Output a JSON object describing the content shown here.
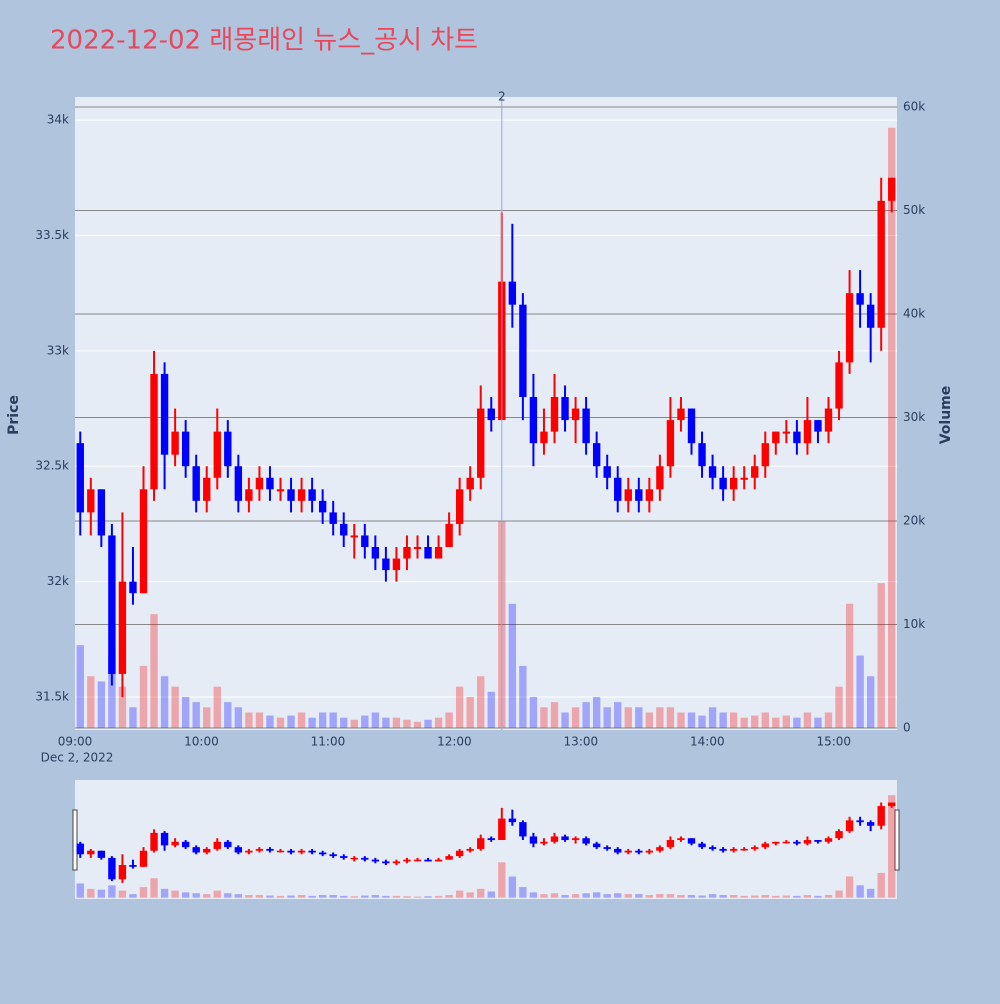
{
  "chart_data": {
    "type": "candlestick",
    "title": "2022-12-02 래몽래인 뉴스_공시 차트",
    "x_date_label": "Dec 2, 2022",
    "y_title": "Price",
    "y2_title": "Volume",
    "increasing_color": "#ff0000",
    "decreasing_color": "#0000ff",
    "xlim": [
      "09:00",
      "15:30"
    ],
    "xticks": [
      "09:00",
      "10:00",
      "11:00",
      "12:00",
      "13:00",
      "14:00",
      "15:00"
    ],
    "ylim": [
      31357,
      34100
    ],
    "yticks": [
      {
        "value": 31500,
        "label": "31.5k"
      },
      {
        "value": 32000,
        "label": "32k"
      },
      {
        "value": 32500,
        "label": "32.5k"
      },
      {
        "value": 33000,
        "label": "33k"
      },
      {
        "value": 33500,
        "label": "33.5k"
      },
      {
        "value": 34000,
        "label": "34k"
      }
    ],
    "y2lim": [
      -193,
      60966
    ],
    "y2ticks": [
      0,
      {
        "value": 10000,
        "label": "10k"
      },
      {
        "value": 20000,
        "label": "20k"
      },
      {
        "value": 30000,
        "label": "30k"
      },
      {
        "value": 40000,
        "label": "40k"
      },
      {
        "value": 50000,
        "label": "50k"
      },
      {
        "value": 60000,
        "label": "60k"
      }
    ],
    "annotation": {
      "x": "12:20",
      "text": "2"
    },
    "x": [
      "09:00",
      "09:05",
      "09:10",
      "09:15",
      "09:20",
      "09:25",
      "09:30",
      "09:35",
      "09:40",
      "09:45",
      "09:50",
      "09:55",
      "10:00",
      "10:05",
      "10:10",
      "10:15",
      "10:20",
      "10:25",
      "10:30",
      "10:35",
      "10:40",
      "10:45",
      "10:50",
      "10:55",
      "11:00",
      "11:05",
      "11:10",
      "11:15",
      "11:20",
      "11:25",
      "11:30",
      "11:35",
      "11:40",
      "11:45",
      "11:50",
      "11:55",
      "12:00",
      "12:05",
      "12:10",
      "12:15",
      "12:20",
      "12:25",
      "12:30",
      "12:35",
      "12:40",
      "12:45",
      "12:50",
      "12:55",
      "13:00",
      "13:05",
      "13:10",
      "13:15",
      "13:20",
      "13:25",
      "13:30",
      "13:35",
      "13:40",
      "13:45",
      "13:50",
      "13:55",
      "14:00",
      "14:05",
      "14:10",
      "14:15",
      "14:20",
      "14:25",
      "14:30",
      "14:35",
      "14:40",
      "14:45",
      "14:50",
      "14:55",
      "15:00",
      "15:05",
      "15:10",
      "15:15",
      "15:20",
      "15:25"
    ],
    "open": [
      32600,
      32300,
      32400,
      32200,
      31600,
      32000,
      31950,
      32400,
      32900,
      32550,
      32650,
      32500,
      32350,
      32450,
      32650,
      32500,
      32350,
      32400,
      32450,
      32400,
      32400,
      32350,
      32400,
      32350,
      32300,
      32250,
      32200,
      32200,
      32150,
      32100,
      32050,
      32100,
      32150,
      32150,
      32100,
      32150,
      32250,
      32400,
      32450,
      32750,
      32700,
      33300,
      33200,
      32800,
      32600,
      32650,
      32800,
      32700,
      32750,
      32600,
      32500,
      32450,
      32350,
      32400,
      32350,
      32400,
      32500,
      32700,
      32750,
      32600,
      32500,
      32450,
      32400,
      32450,
      32450,
      32500,
      32600,
      32650,
      32650,
      32600,
      32700,
      32650,
      32750,
      32950,
      33250,
      33200,
      33100,
      33650
    ],
    "high": [
      32650,
      32450,
      32400,
      32250,
      32300,
      32150,
      32500,
      33000,
      32950,
      32750,
      32700,
      32550,
      32500,
      32750,
      32700,
      32550,
      32450,
      32500,
      32500,
      32450,
      32450,
      32450,
      32450,
      32400,
      32350,
      32300,
      32250,
      32250,
      32200,
      32150,
      32150,
      32200,
      32200,
      32200,
      32200,
      32300,
      32450,
      32500,
      32850,
      32800,
      33600,
      33550,
      33250,
      32900,
      32750,
      32900,
      32850,
      32800,
      32800,
      32650,
      32550,
      32500,
      32450,
      32450,
      32450,
      32550,
      32800,
      32800,
      32750,
      32650,
      32550,
      32500,
      32500,
      32500,
      32550,
      32650,
      32650,
      32700,
      32700,
      32800,
      32700,
      32800,
      33000,
      33350,
      33350,
      33250,
      33750,
      33750
    ],
    "low": [
      32200,
      32200,
      32150,
      31550,
      31500,
      31900,
      31950,
      32350,
      32400,
      32500,
      32450,
      32300,
      32300,
      32400,
      32450,
      32300,
      32300,
      32350,
      32350,
      32350,
      32300,
      32300,
      32300,
      32250,
      32200,
      32150,
      32100,
      32100,
      32050,
      32000,
      32000,
      32050,
      32100,
      32100,
      32100,
      32150,
      32200,
      32350,
      32400,
      32650,
      32700,
      33100,
      32700,
      32500,
      32550,
      32600,
      32650,
      32600,
      32550,
      32450,
      32400,
      32300,
      32300,
      32300,
      32300,
      32350,
      32450,
      32650,
      32550,
      32450,
      32400,
      32350,
      32350,
      32400,
      32400,
      32450,
      32550,
      32600,
      32550,
      32550,
      32600,
      32600,
      32700,
      32900,
      33100,
      32950,
      33000,
      33600
    ],
    "close": [
      32300,
      32400,
      32200,
      31600,
      32000,
      31950,
      32400,
      32900,
      32550,
      32650,
      32500,
      32350,
      32450,
      32650,
      32500,
      32350,
      32400,
      32450,
      32400,
      32400,
      32350,
      32400,
      32350,
      32300,
      32250,
      32200,
      32200,
      32150,
      32100,
      32050,
      32100,
      32150,
      32150,
      32100,
      32150,
      32250,
      32400,
      32450,
      32750,
      32700,
      33300,
      33200,
      32800,
      32600,
      32650,
      32800,
      32700,
      32750,
      32600,
      32500,
      32450,
      32350,
      32400,
      32350,
      32400,
      32500,
      32700,
      32750,
      32600,
      32500,
      32450,
      32400,
      32450,
      32450,
      32500,
      32600,
      32650,
      32650,
      32600,
      32700,
      32650,
      32750,
      32950,
      33250,
      33200,
      33100,
      33650,
      33750
    ],
    "volume": [
      8000,
      5000,
      4500,
      7000,
      4000,
      2000,
      6000,
      11000,
      5000,
      4000,
      3000,
      2500,
      2000,
      4000,
      2500,
      2000,
      1500,
      1500,
      1200,
      1000,
      1200,
      1500,
      1000,
      1500,
      1500,
      1000,
      800,
      1200,
      1500,
      1000,
      1000,
      800,
      600,
      800,
      1000,
      1500,
      4000,
      3000,
      5000,
      3500,
      20000,
      12000,
      6000,
      3000,
      2000,
      2500,
      1500,
      2000,
      2500,
      3000,
      2000,
      2500,
      2000,
      2000,
      1500,
      2000,
      2000,
      1500,
      1500,
      1200,
      2000,
      1500,
      1500,
      1000,
      1200,
      1500,
      1000,
      1200,
      1000,
      1500,
      1000,
      1500,
      4000,
      12000,
      7000,
      5000,
      14000,
      58000
    ]
  }
}
